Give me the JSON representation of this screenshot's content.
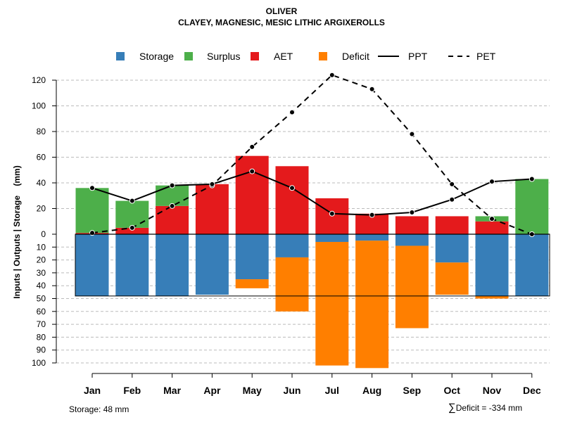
{
  "title": "OLIVER",
  "subtitle": "CLAYEY, MAGNESIC, MESIC LITHIC ARGIXEROLLS",
  "footer": {
    "storage_label": "Storage: 48 mm",
    "deficit_symbol": "∑",
    "deficit_label": "Deficit = -334 mm"
  },
  "chart_data": {
    "type": "bar",
    "ylabel": "Inputs | Outputs | Storage    (mm)",
    "categories": [
      "Jan",
      "Feb",
      "Mar",
      "Apr",
      "May",
      "Jun",
      "Jul",
      "Aug",
      "Sep",
      "Oct",
      "Nov",
      "Dec"
    ],
    "ylim_top": [
      0,
      130
    ],
    "ylim_bottom": [
      0,
      100
    ],
    "yticks_top": [
      "0",
      "20",
      "40",
      "60",
      "80",
      "100",
      "120"
    ],
    "yticks_bottom": [
      "10",
      "20",
      "30",
      "40",
      "50",
      "60",
      "70",
      "80",
      "90",
      "100"
    ],
    "legend": [
      {
        "key": "storage",
        "label": "Storage",
        "kind": "square",
        "color": "#377eb8"
      },
      {
        "key": "surplus",
        "label": "Surplus",
        "kind": "square",
        "color": "#4daf4a"
      },
      {
        "key": "aet",
        "label": "AET",
        "kind": "square",
        "color": "#e41a1c"
      },
      {
        "key": "deficit",
        "label": "Deficit",
        "kind": "square",
        "color": "#ff7f00"
      },
      {
        "key": "ppt",
        "label": "PPT",
        "kind": "solid",
        "color": "#000000"
      },
      {
        "key": "pet",
        "label": "PET",
        "kind": "dashed",
        "color": "#000000"
      }
    ],
    "series": [
      {
        "name": "AET",
        "color": "#e41a1c",
        "values": [
          1,
          5,
          22,
          39,
          61,
          53,
          28,
          16,
          14,
          14,
          10,
          0
        ]
      },
      {
        "name": "Surplus",
        "color": "#4daf4a",
        "values": [
          35,
          21,
          16,
          0,
          0,
          0,
          0,
          0,
          0,
          0,
          4,
          43
        ]
      },
      {
        "name": "Storage",
        "color": "#377eb8",
        "values": [
          48,
          48,
          48,
          47,
          35,
          18,
          6,
          5,
          9,
          22,
          48,
          48
        ]
      },
      {
        "name": "Deficit",
        "color": "#ff7f00",
        "values": [
          0,
          0,
          0,
          0,
          7,
          42,
          96,
          99,
          64,
          25,
          2,
          0
        ]
      },
      {
        "name": "PPT",
        "color": "#000000",
        "style": "solid",
        "values": [
          36,
          26,
          38,
          39,
          49,
          36,
          16,
          15,
          17,
          27,
          41,
          43
        ]
      },
      {
        "name": "PET",
        "color": "#000000",
        "style": "dashed",
        "values": [
          1,
          5,
          22,
          38,
          68,
          95,
          124,
          113,
          78,
          39,
          12,
          0
        ]
      }
    ],
    "storage_capacity": 48
  }
}
